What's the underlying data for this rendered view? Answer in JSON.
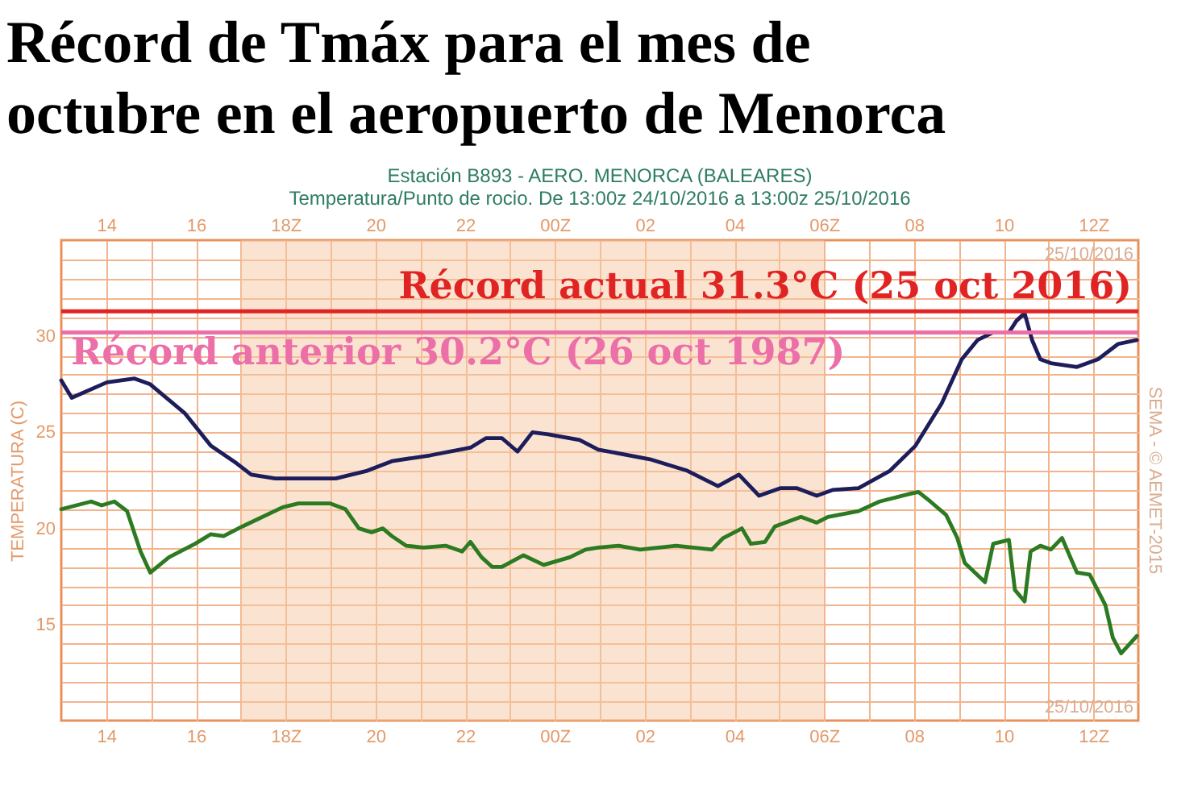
{
  "chart_data": {
    "type": "line",
    "title": "Récord de Tmáx para el mes de\noctubre en el aeropuerto de Menorca",
    "subtitle": "Estación B893 - AERO. MENORCA (BALEARES)\nTemperatura/Punto de rocio. De 13:00z 24/10/2016 a 13:00z 25/10/2016",
    "ylabel": "TEMPERATURA (C)",
    "xlim": [
      "2016-10-24T13:00",
      "2016-10-25T13:00"
    ],
    "xticks": [
      {
        "value": "2016-10-24T14:00",
        "label": "14"
      },
      {
        "value": "2016-10-24T15:00",
        "label": null
      },
      {
        "value": "2016-10-24T16:00",
        "label": "16"
      },
      {
        "value": "2016-10-24T17:00",
        "label": null
      },
      {
        "value": "2016-10-24T18:00",
        "label": "18Z"
      },
      {
        "value": "2016-10-24T19:00",
        "label": null
      },
      {
        "value": "2016-10-24T20:00",
        "label": "20"
      },
      {
        "value": "2016-10-24T21:00",
        "label": null
      },
      {
        "value": "2016-10-24T22:00",
        "label": "22"
      },
      {
        "value": "2016-10-24T23:00",
        "label": null
      },
      {
        "value": "2016-10-25T00:00",
        "label": "00Z"
      },
      {
        "value": "2016-10-25T01:00",
        "label": null
      },
      {
        "value": "2016-10-25T02:00",
        "label": "02"
      },
      {
        "value": "2016-10-25T03:00",
        "label": null
      },
      {
        "value": "2016-10-25T04:00",
        "label": "04"
      },
      {
        "value": "2016-10-25T05:00",
        "label": null
      },
      {
        "value": "2016-10-25T06:00",
        "label": "06Z"
      },
      {
        "value": "2016-10-25T07:00",
        "label": null
      },
      {
        "value": "2016-10-25T08:00",
        "label": "08"
      },
      {
        "value": "2016-10-25T09:00",
        "label": null
      },
      {
        "value": "2016-10-25T10:00",
        "label": "10"
      },
      {
        "value": "2016-10-25T11:00",
        "label": null
      },
      {
        "value": "2016-10-25T12:00",
        "label": "12Z"
      }
    ],
    "x2lim": [
      "2016-10-24T13:00",
      "2016-10-25T13:00"
    ],
    "x2ticks": [
      {
        "value": "2016-10-24T14:00",
        "label": "14"
      },
      {
        "value": "2016-10-24T15:00",
        "label": null
      },
      {
        "value": "2016-10-24T16:00",
        "label": "16"
      },
      {
        "value": "2016-10-24T17:00",
        "label": null
      },
      {
        "value": "2016-10-24T18:00",
        "label": "18Z"
      },
      {
        "value": "2016-10-24T19:00",
        "label": null
      },
      {
        "value": "2016-10-24T20:00",
        "label": "20"
      },
      {
        "value": "2016-10-24T21:00",
        "label": null
      },
      {
        "value": "2016-10-24T22:00",
        "label": "22"
      },
      {
        "value": "2016-10-24T23:00",
        "label": null
      },
      {
        "value": "2016-10-25T00:00",
        "label": "00Z"
      },
      {
        "value": "2016-10-25T01:00",
        "label": null
      },
      {
        "value": "2016-10-25T02:00",
        "label": "02"
      },
      {
        "value": "2016-10-25T03:00",
        "label": null
      },
      {
        "value": "2016-10-25T04:00",
        "label": "04"
      },
      {
        "value": "2016-10-25T05:00",
        "label": null
      },
      {
        "value": "2016-10-25T06:00",
        "label": "06Z"
      },
      {
        "value": "2016-10-25T07:00",
        "label": null
      },
      {
        "value": "2016-10-25T08:00",
        "label": "08"
      },
      {
        "value": "2016-10-25T09:00",
        "label": null
      },
      {
        "value": "2016-10-25T10:00",
        "label": "10"
      },
      {
        "value": "2016-10-25T11:00",
        "label": null
      },
      {
        "value": "2016-10-25T12:00",
        "label": "12Z"
      }
    ],
    "ylim": [
      10,
      35
    ],
    "yticks": [
      {
        "value": 11,
        "label": null
      },
      {
        "value": 12,
        "label": null
      },
      {
        "value": 13,
        "label": null
      },
      {
        "value": 14,
        "label": null
      },
      15,
      {
        "value": 16,
        "label": null
      },
      {
        "value": 17,
        "label": null
      },
      {
        "value": 18,
        "label": null
      },
      {
        "value": 19,
        "label": null
      },
      20,
      {
        "value": 21,
        "label": null
      },
      {
        "value": 22,
        "label": null
      },
      {
        "value": 23,
        "label": null
      },
      {
        "value": 24,
        "label": null
      },
      25,
      {
        "value": 26,
        "label": null
      },
      {
        "value": 27,
        "label": null
      },
      {
        "value": 28,
        "label": null
      },
      {
        "value": 29,
        "label": null
      },
      30,
      {
        "value": 31,
        "label": null
      },
      {
        "value": 32,
        "label": null
      },
      {
        "value": 33,
        "label": null
      },
      {
        "value": 34,
        "label": null
      }
    ],
    "grid": true,
    "series": [
      {
        "color": "#1d1d5c",
        "x": [
          "2016-10-24T13:00",
          "2016-10-24T13:14",
          "2016-10-24T14:01",
          "2016-10-24T14:38",
          "2016-10-24T14:59",
          "2016-10-24T15:45",
          "2016-10-24T16:20",
          "2016-10-24T16:54",
          "2016-10-24T17:14",
          "2016-10-24T17:46",
          "2016-10-24T19:07",
          "2016-10-24T19:49",
          "2016-10-24T20:22",
          "2016-10-24T21:13",
          "2016-10-24T22:07",
          "2016-10-24T22:28",
          "2016-10-24T22:49",
          "2016-10-24T23:10",
          "2016-10-24T23:30",
          "2016-10-24T23:51",
          "2016-10-25T00:33",
          "2016-10-25T00:58",
          "2016-10-25T02:07",
          "2016-10-25T02:57",
          "2016-10-25T03:38",
          "2016-10-25T04:06",
          "2016-10-25T04:33",
          "2016-10-25T05:02",
          "2016-10-25T05:23",
          "2016-10-25T05:50",
          "2016-10-25T06:11",
          "2016-10-25T06:46",
          "2016-10-25T07:28",
          "2016-10-25T08:02",
          "2016-10-25T08:37",
          "2016-10-25T09:04",
          "2016-10-25T09:25",
          "2016-10-25T09:46",
          "2016-10-25T10:07",
          "2016-10-25T10:17",
          "2016-10-25T10:28",
          "2016-10-25T10:38",
          "2016-10-25T10:49",
          "2016-10-25T11:03",
          "2016-10-25T11:38",
          "2016-10-25T12:06",
          "2016-10-25T12:33",
          "2016-10-25T12:58"
        ],
        "values": [
          27.7,
          26.8,
          27.6,
          27.8,
          27.5,
          26.0,
          24.3,
          23.4,
          22.8,
          22.6,
          22.6,
          23.0,
          23.5,
          23.8,
          24.2,
          24.7,
          24.7,
          24.0,
          25.0,
          24.9,
          24.6,
          24.1,
          23.6,
          23.0,
          22.2,
          22.8,
          21.7,
          22.1,
          22.1,
          21.7,
          22.0,
          22.1,
          23.0,
          24.3,
          26.5,
          28.8,
          29.8,
          30.2,
          30.2,
          30.8,
          31.2,
          29.8,
          28.8,
          28.6,
          28.4,
          28.8,
          29.6,
          29.8
        ]
      },
      {
        "color": "#2c7a22",
        "x": [
          "2016-10-24T13:00",
          "2016-10-24T13:40",
          "2016-10-24T13:54",
          "2016-10-24T14:11",
          "2016-10-24T14:28",
          "2016-10-24T14:46",
          "2016-10-24T14:59",
          "2016-10-24T15:24",
          "2016-10-24T15:59",
          "2016-10-24T16:20",
          "2016-10-24T16:37",
          "2016-10-24T17:02",
          "2016-10-24T17:56",
          "2016-10-24T18:17",
          "2016-10-24T18:59",
          "2016-10-24T19:20",
          "2016-10-24T19:38",
          "2016-10-24T19:55",
          "2016-10-24T20:10",
          "2016-10-24T20:22",
          "2016-10-24T20:41",
          "2016-10-24T21:04",
          "2016-10-24T21:34",
          "2016-10-24T21:56",
          "2016-10-24T22:07",
          "2016-10-24T22:22",
          "2016-10-24T22:36",
          "2016-10-24T22:49",
          "2016-10-24T23:18",
          "2016-10-24T23:45",
          "2016-10-25T00:20",
          "2016-10-25T00:41",
          "2016-10-25T00:58",
          "2016-10-25T01:25",
          "2016-10-25T01:54",
          "2016-10-25T02:42",
          "2016-10-25T03:30",
          "2016-10-25T03:45",
          "2016-10-25T04:10",
          "2016-10-25T04:22",
          "2016-10-25T04:41",
          "2016-10-25T04:54",
          "2016-10-25T05:29",
          "2016-10-25T05:50",
          "2016-10-25T06:05",
          "2016-10-25T06:46",
          "2016-10-25T07:14",
          "2016-10-25T07:55",
          "2016-10-25T08:06",
          "2016-10-25T08:22",
          "2016-10-25T08:43",
          "2016-10-25T08:58",
          "2016-10-25T09:08",
          "2016-10-25T09:35",
          "2016-10-25T09:46",
          "2016-10-25T10:07",
          "2016-10-25T10:15",
          "2016-10-25T10:28",
          "2016-10-25T10:36",
          "2016-10-25T10:49",
          "2016-10-25T11:03",
          "2016-10-25T11:18",
          "2016-10-25T11:38",
          "2016-10-25T11:55",
          "2016-10-25T12:16",
          "2016-10-25T12:26",
          "2016-10-25T12:37",
          "2016-10-25T12:58"
        ],
        "values": [
          21.0,
          21.4,
          21.2,
          21.4,
          20.9,
          18.8,
          17.7,
          18.5,
          19.2,
          19.7,
          19.6,
          20.1,
          21.1,
          21.3,
          21.3,
          21.0,
          20.0,
          19.8,
          20.0,
          19.6,
          19.1,
          19.0,
          19.1,
          18.8,
          19.3,
          18.5,
          18.0,
          18.0,
          18.6,
          18.1,
          18.5,
          18.9,
          19.0,
          19.1,
          18.9,
          19.1,
          18.9,
          19.5,
          20.0,
          19.2,
          19.3,
          20.1,
          20.6,
          20.3,
          20.6,
          20.9,
          21.4,
          21.8,
          21.9,
          21.4,
          20.7,
          19.5,
          18.2,
          17.2,
          19.2,
          19.4,
          16.8,
          16.2,
          18.8,
          19.1,
          18.9,
          19.5,
          17.7,
          17.6,
          16.0,
          14.3,
          13.5,
          14.4
        ]
      }
    ],
    "ref_lines": [
      {
        "axis": "y",
        "value": 31.3,
        "label": "Récord actual 31.3°C (25 oct 2016)",
        "color": "#e02424"
      },
      {
        "axis": "y",
        "value": 30.2,
        "label": "Récord anterior 30.2°C (26 oct 1987)",
        "color": "#ec6fa8"
      }
    ],
    "bands": [
      {
        "axis": "x",
        "from": "2016-10-24T17:00",
        "to": "2016-10-25T06:00",
        "color": "#f6c9a4"
      }
    ],
    "annotations": [
      "25/10/2016",
      "25/10/2016",
      "SEMA - © AEMET-2015"
    ]
  }
}
